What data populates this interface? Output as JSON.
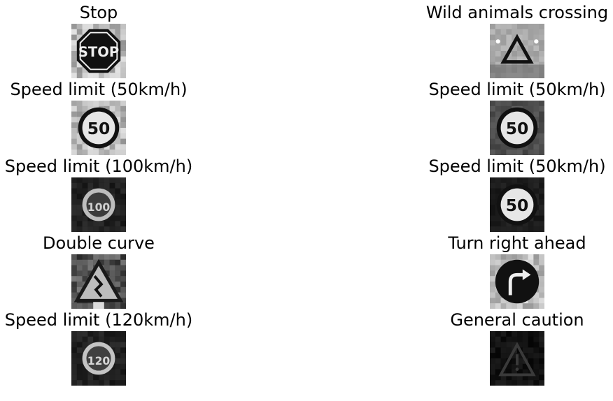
{
  "grid": {
    "columns": 2,
    "rows": 5,
    "cells": [
      {
        "title": "Stop",
        "icon": "stop-sign-icon",
        "tone": "bright"
      },
      {
        "title": "Wild animals crossing",
        "icon": "wild-animals-crossing-sign-icon",
        "tone": "light"
      },
      {
        "title": "Speed limit (50km/h)",
        "icon": "speed-limit-50-sign-icon",
        "tone": "bright"
      },
      {
        "title": "Speed limit (50km/h)",
        "icon": "speed-limit-50-sign-icon",
        "tone": "blurred"
      },
      {
        "title": "Speed limit (100km/h)",
        "icon": "speed-limit-100-sign-icon",
        "tone": "dark"
      },
      {
        "title": "Speed limit (50km/h)",
        "icon": "speed-limit-50-sign-icon",
        "tone": "clear"
      },
      {
        "title": "Double curve",
        "icon": "double-curve-sign-icon",
        "tone": "medium"
      },
      {
        "title": "Turn right ahead",
        "icon": "turn-right-ahead-sign-icon",
        "tone": "bright"
      },
      {
        "title": "Speed limit (120km/h)",
        "icon": "speed-limit-120-sign-icon",
        "tone": "dark"
      },
      {
        "title": "General caution",
        "icon": "general-caution-sign-icon",
        "tone": "very-dark"
      }
    ]
  }
}
